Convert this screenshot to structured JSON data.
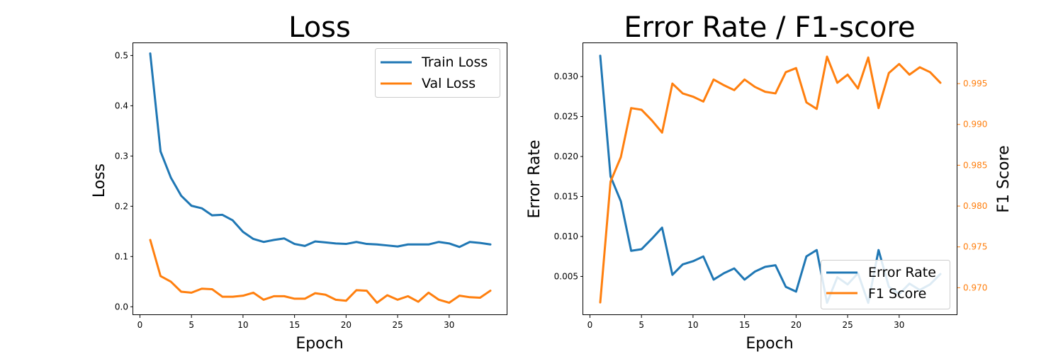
{
  "chart_data": [
    {
      "type": "line",
      "title": "Loss",
      "xlabel": "Epoch",
      "ylabel": "Loss",
      "xlim": [
        -0.65,
        35.65
      ],
      "ylim": [
        -0.0165,
        0.5245
      ],
      "xticks": [
        0,
        5,
        10,
        15,
        20,
        25,
        30
      ],
      "yticks": [
        0.0,
        0.1,
        0.2,
        0.3,
        0.4,
        0.5
      ],
      "ytick_labels": [
        "0.0",
        "0.1",
        "0.2",
        "0.3",
        "0.4",
        "0.5"
      ],
      "legend_position": "upper-right",
      "x": [
        1,
        2,
        3,
        4,
        5,
        6,
        7,
        8,
        9,
        10,
        11,
        12,
        13,
        14,
        15,
        16,
        17,
        18,
        19,
        20,
        21,
        22,
        23,
        24,
        25,
        26,
        27,
        28,
        29,
        30,
        31,
        32,
        33,
        34
      ],
      "series": [
        {
          "name": "Train Loss",
          "color": "#1f77b4",
          "values": [
            0.504,
            0.309,
            0.257,
            0.221,
            0.201,
            0.196,
            0.182,
            0.183,
            0.172,
            0.149,
            0.135,
            0.129,
            0.133,
            0.136,
            0.125,
            0.121,
            0.13,
            0.128,
            0.126,
            0.125,
            0.129,
            0.125,
            0.124,
            0.122,
            0.12,
            0.124,
            0.124,
            0.124,
            0.129,
            0.126,
            0.119,
            0.129,
            0.127,
            0.124
          ]
        },
        {
          "name": "Val Loss",
          "color": "#ff7f0e",
          "values": [
            0.133,
            0.061,
            0.05,
            0.03,
            0.028,
            0.036,
            0.035,
            0.02,
            0.02,
            0.022,
            0.028,
            0.014,
            0.021,
            0.021,
            0.016,
            0.016,
            0.027,
            0.024,
            0.014,
            0.012,
            0.033,
            0.032,
            0.008,
            0.023,
            0.014,
            0.021,
            0.01,
            0.028,
            0.014,
            0.008,
            0.022,
            0.019,
            0.018,
            0.032
          ]
        }
      ]
    },
    {
      "type": "line",
      "title": "Error Rate / F1-score",
      "xlabel": "Epoch",
      "ylabel": "Error Rate",
      "ylabel_right": "F1 Score",
      "xlim": [
        -0.65,
        35.65
      ],
      "ylim": [
        0.000168,
        0.03417
      ],
      "ylim_right": [
        0.96665,
        0.99995
      ],
      "xticks": [
        0,
        5,
        10,
        15,
        20,
        25,
        30
      ],
      "yticks": [
        0.005,
        0.01,
        0.015,
        0.02,
        0.025,
        0.03
      ],
      "ytick_labels": [
        "0.005",
        "0.010",
        "0.015",
        "0.020",
        "0.025",
        "0.030"
      ],
      "yticks_right": [
        0.97,
        0.975,
        0.98,
        0.985,
        0.99,
        0.995
      ],
      "ytick_labels_right": [
        "0.970",
        "0.975",
        "0.980",
        "0.985",
        "0.990",
        "0.995"
      ],
      "legend_position": "lower-right",
      "x": [
        1,
        2,
        3,
        4,
        5,
        6,
        7,
        8,
        9,
        10,
        11,
        12,
        13,
        14,
        15,
        16,
        17,
        18,
        19,
        20,
        21,
        22,
        23,
        24,
        25,
        26,
        27,
        28,
        29,
        30,
        31,
        32,
        33,
        34
      ],
      "series": [
        {
          "name": "Error Rate",
          "color": "#1f77b4",
          "axis": "left",
          "values": [
            0.0326,
            0.0175,
            0.0144,
            0.0082,
            0.0084,
            0.0097,
            0.0111,
            0.0052,
            0.0065,
            0.0069,
            0.0075,
            0.0046,
            0.0054,
            0.006,
            0.0046,
            0.0056,
            0.0062,
            0.0064,
            0.0037,
            0.0031,
            0.0075,
            0.0083,
            0.0017,
            0.0049,
            0.004,
            0.0054,
            0.0017,
            0.0083,
            0.0037,
            0.0028,
            0.0041,
            0.0033,
            0.004,
            0.0053
          ]
        },
        {
          "name": "F1 Score",
          "color": "#ff7f0e",
          "axis": "right",
          "values": [
            0.9682,
            0.983,
            0.986,
            0.992,
            0.9918,
            0.9905,
            0.989,
            0.995,
            0.9938,
            0.9934,
            0.9928,
            0.9955,
            0.9948,
            0.9942,
            0.9955,
            0.9946,
            0.994,
            0.9938,
            0.9964,
            0.9969,
            0.9927,
            0.9919,
            0.9983,
            0.9951,
            0.9961,
            0.9944,
            0.9982,
            0.992,
            0.9963,
            0.9974,
            0.9961,
            0.997,
            0.9964,
            0.9951
          ]
        }
      ]
    }
  ]
}
